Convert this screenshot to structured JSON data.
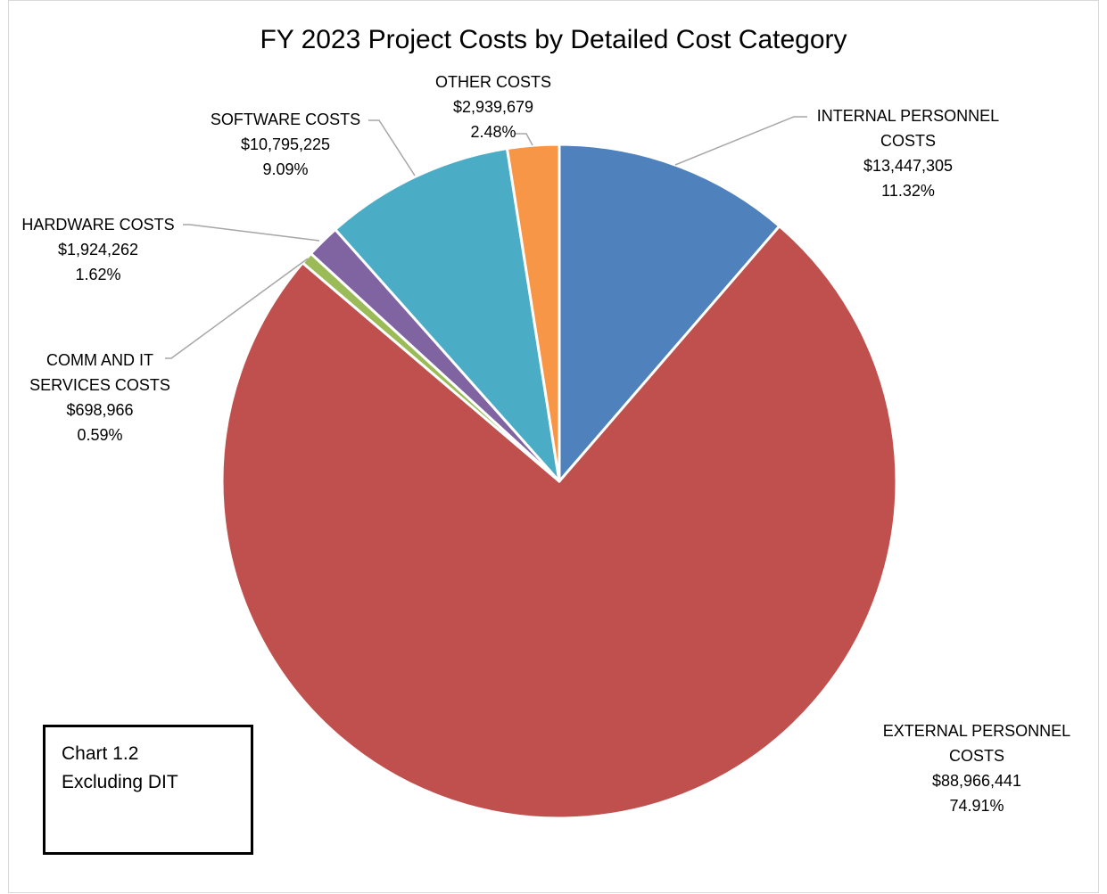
{
  "chart_data": {
    "type": "pie",
    "title": "FY 2023 Project Costs by Detailed Cost Category",
    "categories": [
      "INTERNAL PERSONNEL COSTS",
      "EXTERNAL PERSONNEL COSTS",
      "COMM AND IT SERVICES COSTS",
      "HARDWARE COSTS",
      "SOFTWARE COSTS",
      "OTHER COSTS"
    ],
    "values": [
      13447305,
      88966441,
      698966,
      1924262,
      10795225,
      2939679
    ],
    "value_labels": [
      "$13,447,305",
      "$88,966,441",
      "$698,966",
      "$1,924,262",
      "$10,795,225",
      "$2,939,679"
    ],
    "percent_labels": [
      "11.32%",
      "74.91%",
      "0.59%",
      "1.62%",
      "9.09%",
      "2.48%"
    ],
    "colors": [
      "#4f81bd",
      "#c0504d",
      "#9bbb59",
      "#8064a2",
      "#4bacc6",
      "#f79646"
    ],
    "annotation": [
      "Chart 1.2",
      "Excluding DIT"
    ]
  }
}
